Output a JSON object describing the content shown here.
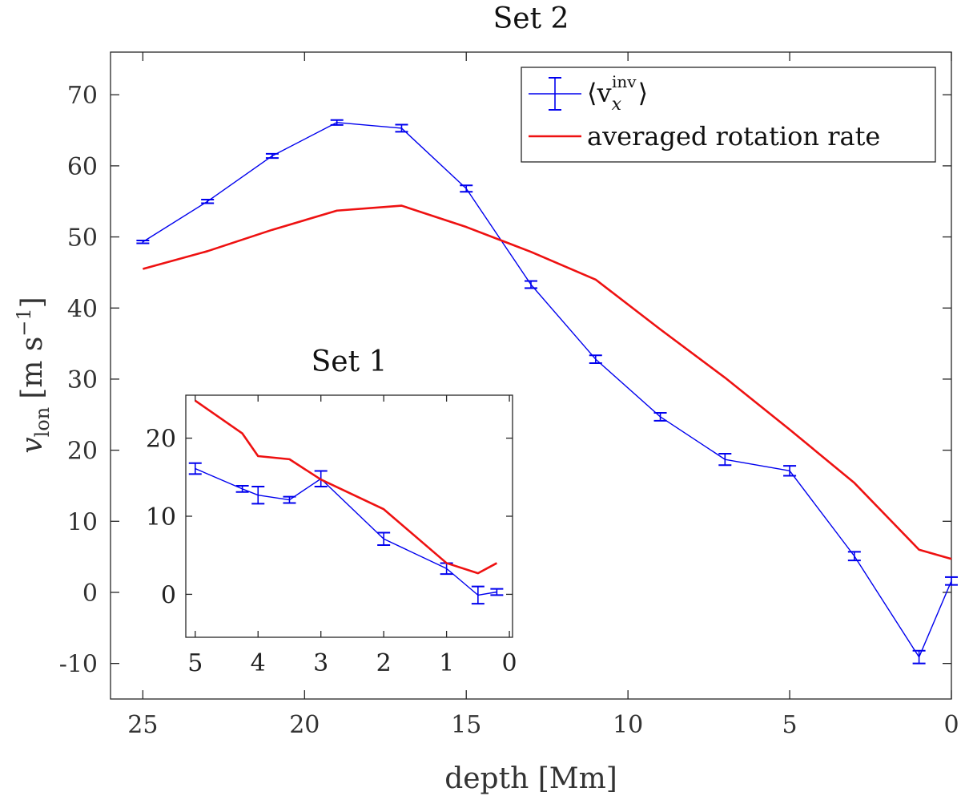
{
  "chart_data": [
    {
      "id": "main",
      "type": "line",
      "title": "Set 2",
      "xlabel": "depth [Mm]",
      "ylabel_main": "v",
      "ylabel_sub": "lon",
      "ylabel_units": "[m s",
      "ylabel_exp": "−1",
      "ylabel_close": "]",
      "xlim": [
        26,
        0
      ],
      "ylim": [
        -15,
        76
      ],
      "xticks": [
        25,
        20,
        15,
        10,
        5,
        0
      ],
      "yticks": [
        -10,
        0,
        10,
        20,
        30,
        40,
        50,
        60,
        70
      ],
      "grid": false,
      "legend": {
        "position": "top-right",
        "entries": [
          {
            "label_main": "⟨v",
            "label_sub": "x",
            "label_sup": "inv",
            "label_close": "⟩",
            "series": "vinv"
          },
          {
            "label_main": "averaged rotation rate",
            "series": "rotation"
          }
        ]
      },
      "series": [
        {
          "name": "⟨v_x^inv⟩",
          "key": "vinv",
          "color": "#0000ee",
          "errorbars": true,
          "x": [
            25,
            23,
            21,
            19,
            17,
            15,
            13,
            11,
            9,
            7,
            5,
            3,
            1,
            0
          ],
          "y": [
            49.3,
            55.0,
            61.4,
            66.1,
            65.3,
            56.8,
            43.3,
            32.8,
            24.7,
            18.7,
            17.1,
            5.1,
            -9.1,
            1.6
          ],
          "err": [
            0.2,
            0.25,
            0.3,
            0.35,
            0.5,
            0.45,
            0.5,
            0.55,
            0.55,
            0.8,
            0.7,
            0.6,
            0.9,
            0.55
          ]
        },
        {
          "name": "averaged rotation rate",
          "key": "rotation",
          "color": "#ee1111",
          "errorbars": false,
          "x": [
            25,
            23,
            21,
            19,
            17,
            15,
            13,
            11,
            9,
            7,
            5,
            3,
            1,
            0
          ],
          "y": [
            45.5,
            48.0,
            51.0,
            53.7,
            54.4,
            51.4,
            47.9,
            44.0,
            37.0,
            30.2,
            22.9,
            15.4,
            6.0,
            4.7
          ]
        }
      ]
    },
    {
      "id": "inset",
      "type": "line",
      "title": "Set 1",
      "xlim": [
        5.15,
        -0.05
      ],
      "ylim": [
        -5.5,
        25.5
      ],
      "xticks": [
        5,
        4,
        3,
        2,
        1,
        0
      ],
      "yticks": [
        0,
        10,
        20
      ],
      "grid": false,
      "series": [
        {
          "name": "⟨v_x^inv⟩",
          "key": "vinv",
          "color": "#0000ee",
          "errorbars": true,
          "x": [
            5,
            4.25,
            4,
            3.5,
            3,
            2,
            1,
            0.5,
            0.2
          ],
          "y": [
            16.1,
            13.5,
            12.7,
            12.1,
            14.8,
            7.1,
            3.3,
            -0.1,
            0.3
          ],
          "err": [
            0.7,
            0.4,
            1.1,
            0.4,
            1.0,
            0.8,
            0.7,
            1.1,
            0.4
          ]
        },
        {
          "name": "averaged rotation rate",
          "key": "rotation",
          "color": "#ee1111",
          "errorbars": false,
          "x": [
            5,
            4.25,
            4,
            3.5,
            3,
            2,
            1,
            0.5,
            0.2
          ],
          "y": [
            24.8,
            20.6,
            17.7,
            17.3,
            14.7,
            10.9,
            4.0,
            2.7,
            4.0
          ]
        }
      ]
    }
  ]
}
